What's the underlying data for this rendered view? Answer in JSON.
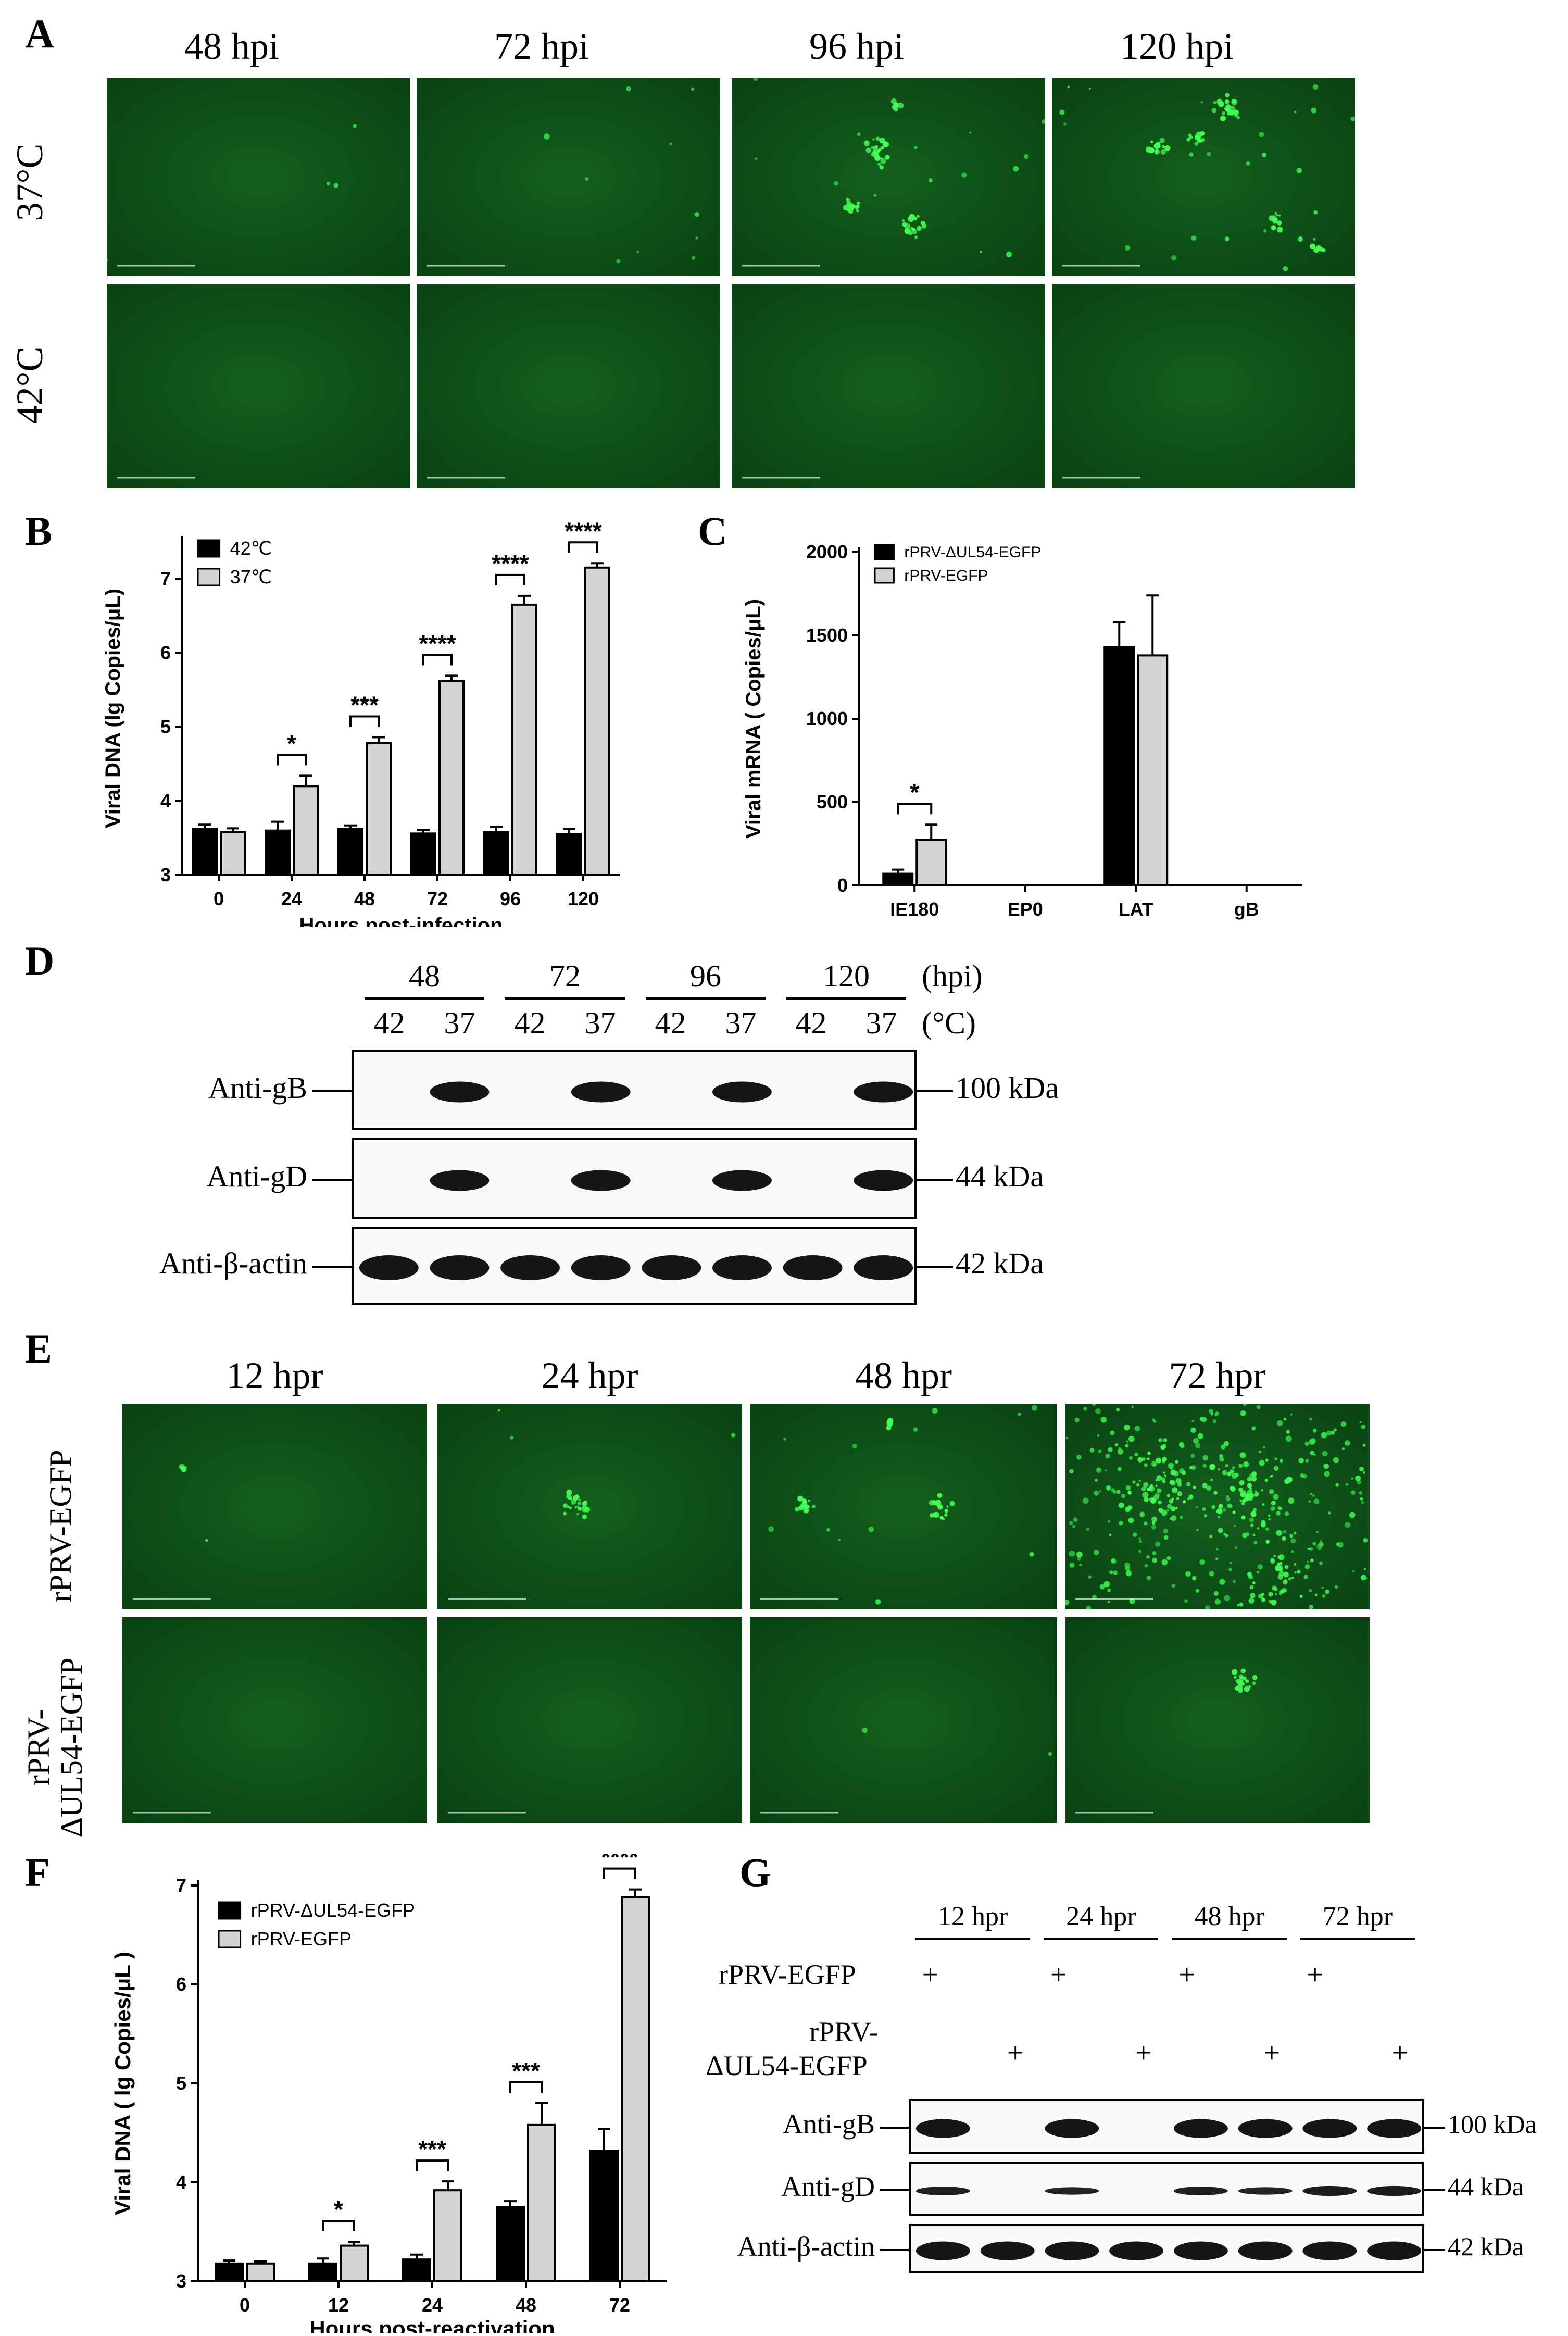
{
  "panels": {
    "A": "A",
    "B": "B",
    "C": "C",
    "D": "D",
    "E": "E",
    "F": "F",
    "G": "G"
  },
  "panelA": {
    "columns": [
      "48 hpi",
      "72 hpi",
      "96 hpi",
      "120 hpi"
    ],
    "rows": [
      "37°C",
      "42°C"
    ]
  },
  "panelE": {
    "columns": [
      "12 hpr",
      "24 hpr",
      "48 hpr",
      "72 hpr"
    ],
    "rows": [
      "rPRV-EGFP",
      "rPRV-ΔUL54-EGFP"
    ],
    "row2_line1": "rPRV-",
    "row2_line2": "ΔUL54-EGFP"
  },
  "panelD": {
    "timepoints": [
      "48",
      "72",
      "96",
      "120"
    ],
    "time_unit": "(hpi)",
    "temps": [
      "42",
      "37",
      "42",
      "37",
      "42",
      "37",
      "42",
      "37"
    ],
    "temp_unit": "(°C)",
    "blots": [
      {
        "label": "Anti-gB",
        "size": "100 kDa"
      },
      {
        "label": "Anti-gD",
        "size": "44 kDa"
      },
      {
        "label": "Anti-β-actin",
        "size": "42 kDa"
      }
    ]
  },
  "panelG": {
    "timepoints": [
      "12 hpr",
      "24 hpr",
      "48 hpr",
      "72 hpr"
    ],
    "row1_label": "rPRV-EGFP",
    "row2_label_line1": "rPRV-",
    "row2_label_line2": "ΔUL54-EGFP",
    "plus": "+",
    "blots": [
      {
        "label": "Anti-gB",
        "size": "100 kDa"
      },
      {
        "label": "Anti-gD",
        "size": "44 kDa"
      },
      {
        "label": "Anti-β-actin",
        "size": "42 kDa"
      }
    ]
  },
  "chart_data": [
    {
      "panel": "B",
      "type": "bar",
      "categories": [
        "0",
        "24",
        "48",
        "72",
        "96",
        "120"
      ],
      "series": [
        {
          "name": "42℃",
          "values": [
            3.62,
            3.6,
            3.62,
            3.56,
            3.58,
            3.55
          ],
          "errors": [
            0.06,
            0.12,
            0.05,
            0.05,
            0.07,
            0.07
          ],
          "color": "#000000"
        },
        {
          "name": "37℃",
          "values": [
            3.58,
            4.2,
            4.78,
            5.62,
            6.65,
            7.15
          ],
          "errors": [
            0.05,
            0.14,
            0.08,
            0.07,
            0.12,
            0.06
          ],
          "color": "#d3d3d3"
        }
      ],
      "ylabel": "Viral DNA (lg Copies/μL)",
      "xlabel": "Hours post-infection",
      "ylim": [
        3,
        7.5
      ],
      "yticks": [
        3,
        4,
        5,
        6,
        7
      ],
      "significance": [
        {
          "category": "24",
          "label": "*"
        },
        {
          "category": "48",
          "label": "***"
        },
        {
          "category": "72",
          "label": "****"
        },
        {
          "category": "96",
          "label": "****"
        },
        {
          "category": "120",
          "label": "****"
        }
      ],
      "legend": "top-left"
    },
    {
      "panel": "C",
      "type": "bar",
      "categories": [
        "IE180",
        "EP0",
        "LAT",
        "gB"
      ],
      "series": [
        {
          "name": "rPRV-ΔUL54-EGFP",
          "values": [
            70,
            0,
            1430,
            0
          ],
          "errors": [
            25,
            0,
            150,
            0
          ],
          "color": "#000000"
        },
        {
          "name": "rPRV-EGFP",
          "values": [
            275,
            0,
            1380,
            0
          ],
          "errors": [
            90,
            0,
            360,
            0
          ],
          "color": "#d3d3d3"
        }
      ],
      "ylabel": "Viral mRNA ( Copies/μL)",
      "xlabel": "",
      "ylim": [
        0,
        2000
      ],
      "yticks": [
        0,
        500,
        1000,
        1500,
        2000
      ],
      "significance": [
        {
          "category": "IE180",
          "label": "*"
        }
      ],
      "legend": "top-left"
    },
    {
      "panel": "F",
      "type": "bar",
      "categories": [
        "0",
        "12",
        "24",
        "48",
        "72"
      ],
      "series": [
        {
          "name": "rPRV-ΔUL54-EGFP",
          "values": [
            3.18,
            3.18,
            3.22,
            3.75,
            4.32
          ],
          "errors": [
            0.03,
            0.05,
            0.05,
            0.06,
            0.22
          ],
          "color": "#000000"
        },
        {
          "name": "rPRV-EGFP",
          "values": [
            3.18,
            3.36,
            3.92,
            4.58,
            6.88
          ],
          "errors": [
            0.02,
            0.04,
            0.09,
            0.22,
            0.08
          ],
          "color": "#d3d3d3"
        }
      ],
      "ylabel": "Viral DNA ( lg Copies/μL )",
      "xlabel": "Hours post-reactivation",
      "ylim": [
        3,
        7
      ],
      "yticks": [
        3,
        4,
        5,
        6,
        7
      ],
      "significance": [
        {
          "category": "12",
          "label": "*"
        },
        {
          "category": "24",
          "label": "***"
        },
        {
          "category": "48",
          "label": "***"
        },
        {
          "category": "72",
          "label": "****"
        }
      ],
      "legend": "top-left"
    }
  ]
}
